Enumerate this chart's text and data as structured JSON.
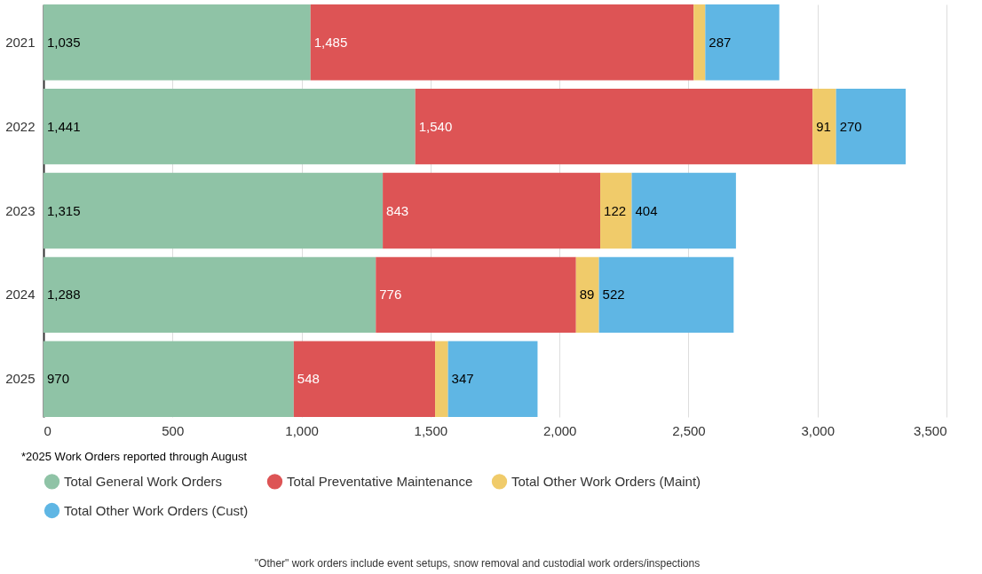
{
  "chart_data": {
    "type": "bar",
    "orientation": "horizontal",
    "stacked": true,
    "categories": [
      "2021",
      "2022",
      "2023",
      "2024",
      "2025"
    ],
    "series": [
      {
        "name": "Total General Work Orders",
        "color": "#8fc3a6",
        "values": [
          1035,
          1441,
          1315,
          1288,
          970
        ],
        "value_labels": [
          "1,035",
          "1,441",
          "1,315",
          "1,288",
          "970"
        ]
      },
      {
        "name": "Total Preventative Maintenance",
        "color": "#dd5455",
        "values": [
          1485,
          1540,
          843,
          776,
          548
        ],
        "value_labels": [
          "1,485",
          "1,540",
          "843",
          "776",
          "548"
        ]
      },
      {
        "name": "Total Other Work Orders (Maint)",
        "color": "#f0cb6a",
        "values": [
          45,
          91,
          122,
          89,
          50
        ],
        "value_labels": [
          null,
          "91",
          "122",
          "89",
          null
        ]
      },
      {
        "name": "Total Other Work Orders (Cust)",
        "color": "#5fb6e4",
        "values": [
          287,
          270,
          404,
          522,
          347
        ],
        "value_labels": [
          "287",
          "270",
          "404",
          "522",
          "347"
        ]
      }
    ],
    "xlim": [
      0,
      3500
    ],
    "xticks": [
      {
        "value": 0,
        "label": "0"
      },
      {
        "value": 500,
        "label": "500"
      },
      {
        "value": 1000,
        "label": "1,000"
      },
      {
        "value": 1500,
        "label": "1,500"
      },
      {
        "value": 2000,
        "label": "2,000"
      },
      {
        "value": 2500,
        "label": "2,500"
      },
      {
        "value": 3000,
        "label": "3,000"
      },
      {
        "value": 3500,
        "label": "3,500"
      }
    ],
    "grid": "x",
    "legend": "bottom",
    "annotations": [
      "*2025 Work Orders reported through August",
      "\"Other\" work orders include event setups, snow removal and custodial work orders/inspections"
    ]
  }
}
